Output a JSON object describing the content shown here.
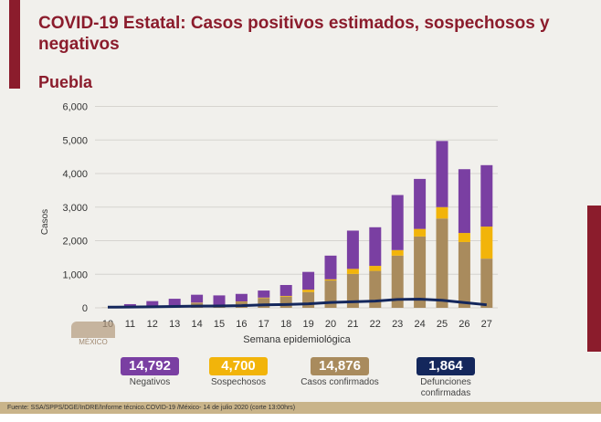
{
  "title": "COVID-19 Estatal: Casos positivos estimados, sospechosos y negativos",
  "state": "Puebla",
  "logo_text": "MÉXICO",
  "colors": {
    "negativos": "#7a3fa2",
    "sospechosos": "#f2b40a",
    "confirmados": "#a98b5d",
    "defunciones": "#14275c",
    "accent": "#8b1c2c"
  },
  "summary": [
    {
      "value": "14,792",
      "label": "Negativos"
    },
    {
      "value": "4,700",
      "label": "Sospechosos"
    },
    {
      "value": "14,876",
      "label": "Casos confirmados"
    },
    {
      "value": "1,864",
      "label": "Defunciones confirmadas"
    }
  ],
  "footer": "Fuente: SSA/SPPS/DGE/InDRE/Informe técnico.COVID-19 /México- 14 de julio 2020 (corte 13:00hrs)",
  "chart_data": {
    "type": "bar",
    "stacked": true,
    "xlabel": "Semana epidemiológica",
    "ylabel": "Casos",
    "ylim": [
      0,
      6000
    ],
    "yticks": [
      "0",
      "1,000",
      "2,000",
      "3,000",
      "4,000",
      "5,000",
      "6,000"
    ],
    "grid": true,
    "categories": [
      "10",
      "11",
      "12",
      "13",
      "14",
      "15",
      "16",
      "17",
      "18",
      "19",
      "20",
      "21",
      "22",
      "23",
      "24",
      "25",
      "26",
      "27"
    ],
    "series": [
      {
        "name": "Casos confirmados",
        "values": [
          5,
          20,
          20,
          40,
          145,
          80,
          180,
          290,
          335,
          470,
          815,
          1010,
          1100,
          1555,
          2125,
          2660,
          1960,
          1465
        ]
      },
      {
        "name": "Sospechosos",
        "values": [
          0,
          5,
          10,
          10,
          10,
          10,
          10,
          15,
          20,
          70,
          35,
          150,
          150,
          165,
          225,
          340,
          270,
          955
        ]
      },
      {
        "name": "Negativos",
        "values": [
          0,
          85,
          170,
          220,
          235,
          280,
          225,
          210,
          325,
          530,
          705,
          1140,
          1150,
          1640,
          1490,
          1970,
          1900,
          1830
        ]
      },
      {
        "name": "Defunciones confirmadas",
        "type": "line",
        "values": [
          20,
          25,
          30,
          40,
          50,
          55,
          65,
          90,
          100,
          120,
          160,
          180,
          200,
          250,
          260,
          225,
          155,
          90
        ]
      }
    ]
  }
}
